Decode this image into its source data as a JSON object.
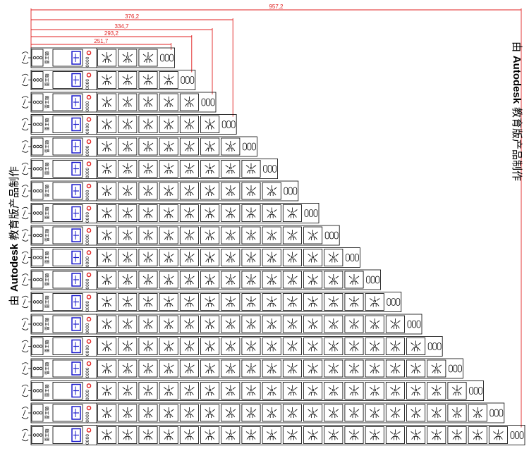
{
  "watermark": {
    "prefix": "由 ",
    "brand": "Autodesk",
    "suffix": " 教育版产品制作"
  },
  "dimensions": [
    "957,2",
    "376,2",
    "334,7",
    "293,2",
    "251,7"
  ],
  "strip": {
    "brand_label": "雷王頸",
    "switch_label": "0000"
  },
  "rows": {
    "outlet_counts": [
      3,
      4,
      5,
      6,
      7,
      8,
      9,
      10,
      11,
      12,
      13,
      14,
      15,
      16,
      17,
      18,
      19,
      20
    ]
  },
  "colors": {
    "line": "#000000",
    "dimension": "#e02020",
    "breaker": "#1a1acc",
    "indicator": "#e02020"
  }
}
